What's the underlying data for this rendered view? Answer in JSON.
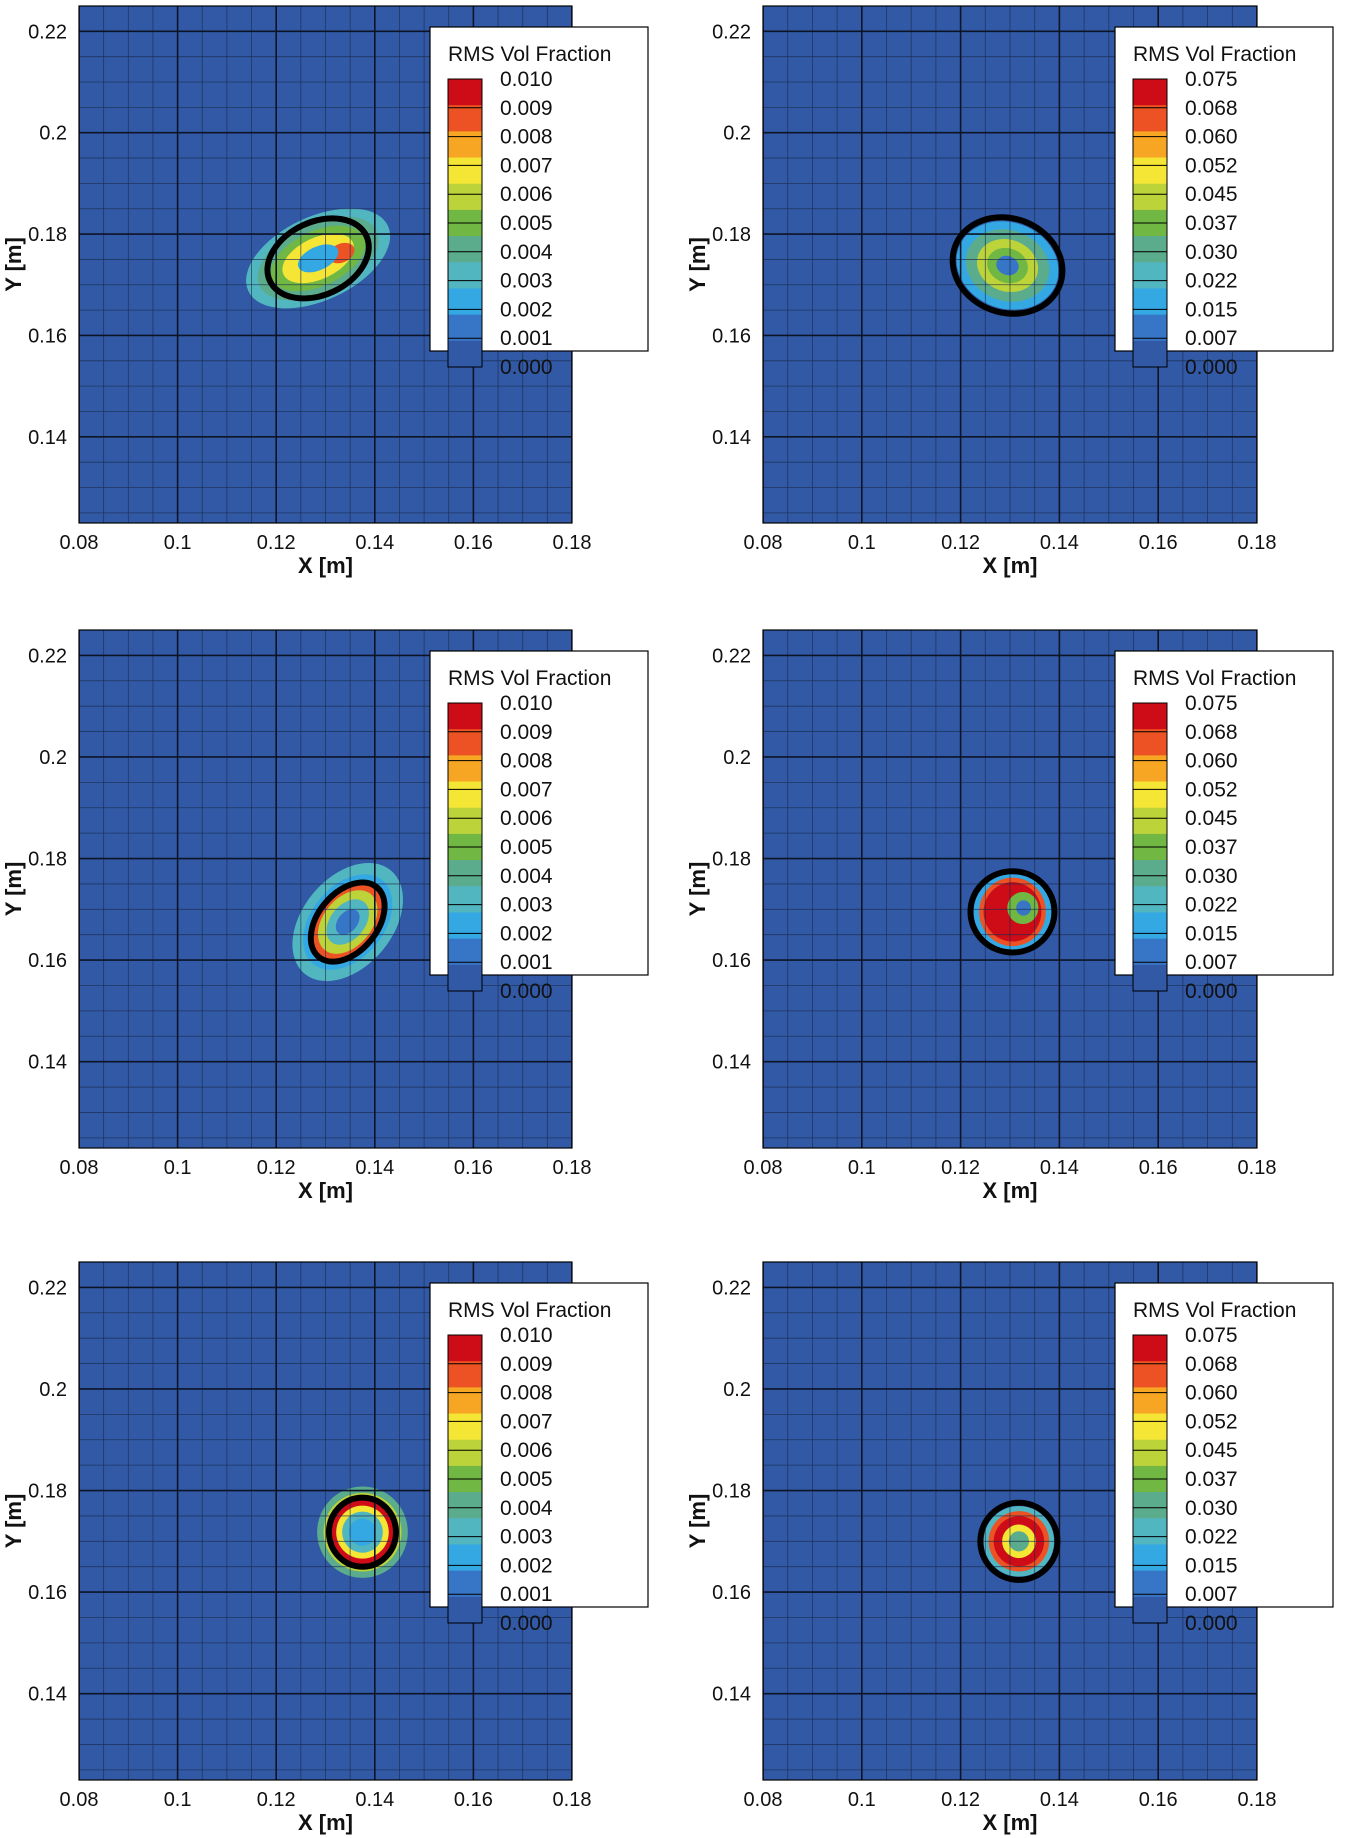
{
  "chart_data": [
    {
      "type": "heatmap",
      "xlabel": "X [m]",
      "ylabel": "Y [m]",
      "xlim": [
        0.08,
        0.18
      ],
      "ylim": [
        0.123,
        0.225
      ],
      "xticks": [
        "0.08",
        "0.1",
        "0.12",
        "0.14",
        "0.16",
        "0.18"
      ],
      "yticks": [
        "0.14",
        "0.16",
        "0.18",
        "0.2",
        "0.22"
      ],
      "legend": {
        "title": "RMS Vol Fraction",
        "position": "top-right",
        "levels": [
          "0.010",
          "0.009",
          "0.008",
          "0.007",
          "0.006",
          "0.005",
          "0.004",
          "0.003",
          "0.002",
          "0.001",
          "0.000"
        ]
      },
      "feature": {
        "cx": 0.1285,
        "cy": 0.1752,
        "rx": 0.0125,
        "ry": 0.0066,
        "angle_deg": -25,
        "contour_rx": 0.0108,
        "contour_ry": 0.0072,
        "style": "elongated"
      }
    },
    {
      "type": "heatmap",
      "xlabel": "X [m]",
      "ylabel": "Y [m]",
      "xlim": [
        0.08,
        0.18
      ],
      "ylim": [
        0.123,
        0.225
      ],
      "xticks": [
        "0.08",
        "0.1",
        "0.12",
        "0.14",
        "0.16",
        "0.18"
      ],
      "yticks": [
        "0.14",
        "0.16",
        "0.18",
        "0.2",
        "0.22"
      ],
      "legend": {
        "title": "RMS Vol Fraction",
        "position": "top-right",
        "levels": [
          "0.075",
          "0.068",
          "0.060",
          "0.052",
          "0.045",
          "0.037",
          "0.030",
          "0.022",
          "0.015",
          "0.007",
          "0.000"
        ]
      },
      "feature": {
        "cx": 0.1295,
        "cy": 0.1738,
        "rx": 0.0105,
        "ry": 0.0085,
        "angle_deg": 20,
        "contour_rx": 0.0113,
        "contour_ry": 0.0093,
        "style": "diffuse"
      }
    },
    {
      "type": "heatmap",
      "xlabel": "X [m]",
      "ylabel": "Y [m]",
      "xlim": [
        0.08,
        0.18
      ],
      "ylim": [
        0.123,
        0.225
      ],
      "xticks": [
        "0.08",
        "0.1",
        "0.12",
        "0.14",
        "0.16",
        "0.18"
      ],
      "yticks": [
        "0.14",
        "0.16",
        "0.18",
        "0.2",
        "0.22"
      ],
      "legend": {
        "title": "RMS Vol Fraction",
        "position": "top-right",
        "levels": [
          "0.010",
          "0.009",
          "0.008",
          "0.007",
          "0.006",
          "0.005",
          "0.004",
          "0.003",
          "0.002",
          "0.001",
          "0.000"
        ]
      },
      "feature": {
        "cx": 0.1345,
        "cy": 0.1675,
        "rx": 0.0105,
        "ry": 0.0068,
        "angle_deg": -50,
        "contour_rx": 0.0092,
        "contour_ry": 0.0058,
        "style": "ring-tilted"
      }
    },
    {
      "type": "heatmap",
      "xlabel": "X [m]",
      "ylabel": "Y [m]",
      "xlim": [
        0.08,
        0.18
      ],
      "ylim": [
        0.123,
        0.225
      ],
      "xticks": [
        "0.08",
        "0.1",
        "0.12",
        "0.14",
        "0.16",
        "0.18"
      ],
      "yticks": [
        "0.14",
        "0.16",
        "0.18",
        "0.2",
        "0.22"
      ],
      "legend": {
        "title": "RMS Vol Fraction",
        "position": "top-right",
        "levels": [
          "0.075",
          "0.068",
          "0.060",
          "0.052",
          "0.045",
          "0.037",
          "0.030",
          "0.022",
          "0.015",
          "0.007",
          "0.000"
        ]
      },
      "feature": {
        "cx": 0.1305,
        "cy": 0.1695,
        "rx": 0.0075,
        "ry": 0.0075,
        "angle_deg": 0,
        "contour_rx": 0.0085,
        "contour_ry": 0.008,
        "style": "crescent"
      }
    },
    {
      "type": "heatmap",
      "xlabel": "X [m]",
      "ylabel": "Y [m]",
      "xlim": [
        0.08,
        0.18
      ],
      "ylim": [
        0.123,
        0.225
      ],
      "xticks": [
        "0.08",
        "0.1",
        "0.12",
        "0.14",
        "0.16",
        "0.18"
      ],
      "yticks": [
        "0.14",
        "0.16",
        "0.18",
        "0.2",
        "0.22"
      ],
      "legend": {
        "title": "RMS Vol Fraction",
        "position": "top-right",
        "levels": [
          "0.010",
          "0.009",
          "0.008",
          "0.007",
          "0.006",
          "0.005",
          "0.004",
          "0.003",
          "0.002",
          "0.001",
          "0.000"
        ]
      },
      "feature": {
        "cx": 0.1375,
        "cy": 0.1718,
        "rx": 0.0092,
        "ry": 0.009,
        "angle_deg": 0,
        "contour_rx": 0.0068,
        "contour_ry": 0.0068,
        "style": "ring"
      }
    },
    {
      "type": "heatmap",
      "xlabel": "X [m]",
      "ylabel": "Y [m]",
      "xlim": [
        0.08,
        0.18
      ],
      "ylim": [
        0.123,
        0.225
      ],
      "xticks": [
        "0.08",
        "0.1",
        "0.12",
        "0.14",
        "0.16",
        "0.18"
      ],
      "yticks": [
        "0.14",
        "0.16",
        "0.18",
        "0.2",
        "0.22"
      ],
      "legend": {
        "title": "RMS Vol Fraction",
        "position": "top-right",
        "levels": [
          "0.075",
          "0.068",
          "0.060",
          "0.052",
          "0.045",
          "0.037",
          "0.030",
          "0.022",
          "0.015",
          "0.007",
          "0.000"
        ]
      },
      "feature": {
        "cx": 0.1318,
        "cy": 0.17,
        "rx": 0.0068,
        "ry": 0.0066,
        "angle_deg": 0,
        "contour_rx": 0.0078,
        "contour_ry": 0.0076,
        "style": "ring-solid"
      }
    }
  ],
  "colors": {
    "background": "#3159a6",
    "gridline": "#1c2a4a",
    "contour": "#000000",
    "colormap": [
      "#ce0c17",
      "#ec5223",
      "#f6a623",
      "#f5e636",
      "#bcd339",
      "#71b744",
      "#5bab8d",
      "#52b6c1",
      "#34a8e3",
      "#3775c7",
      "#3159a6"
    ]
  }
}
